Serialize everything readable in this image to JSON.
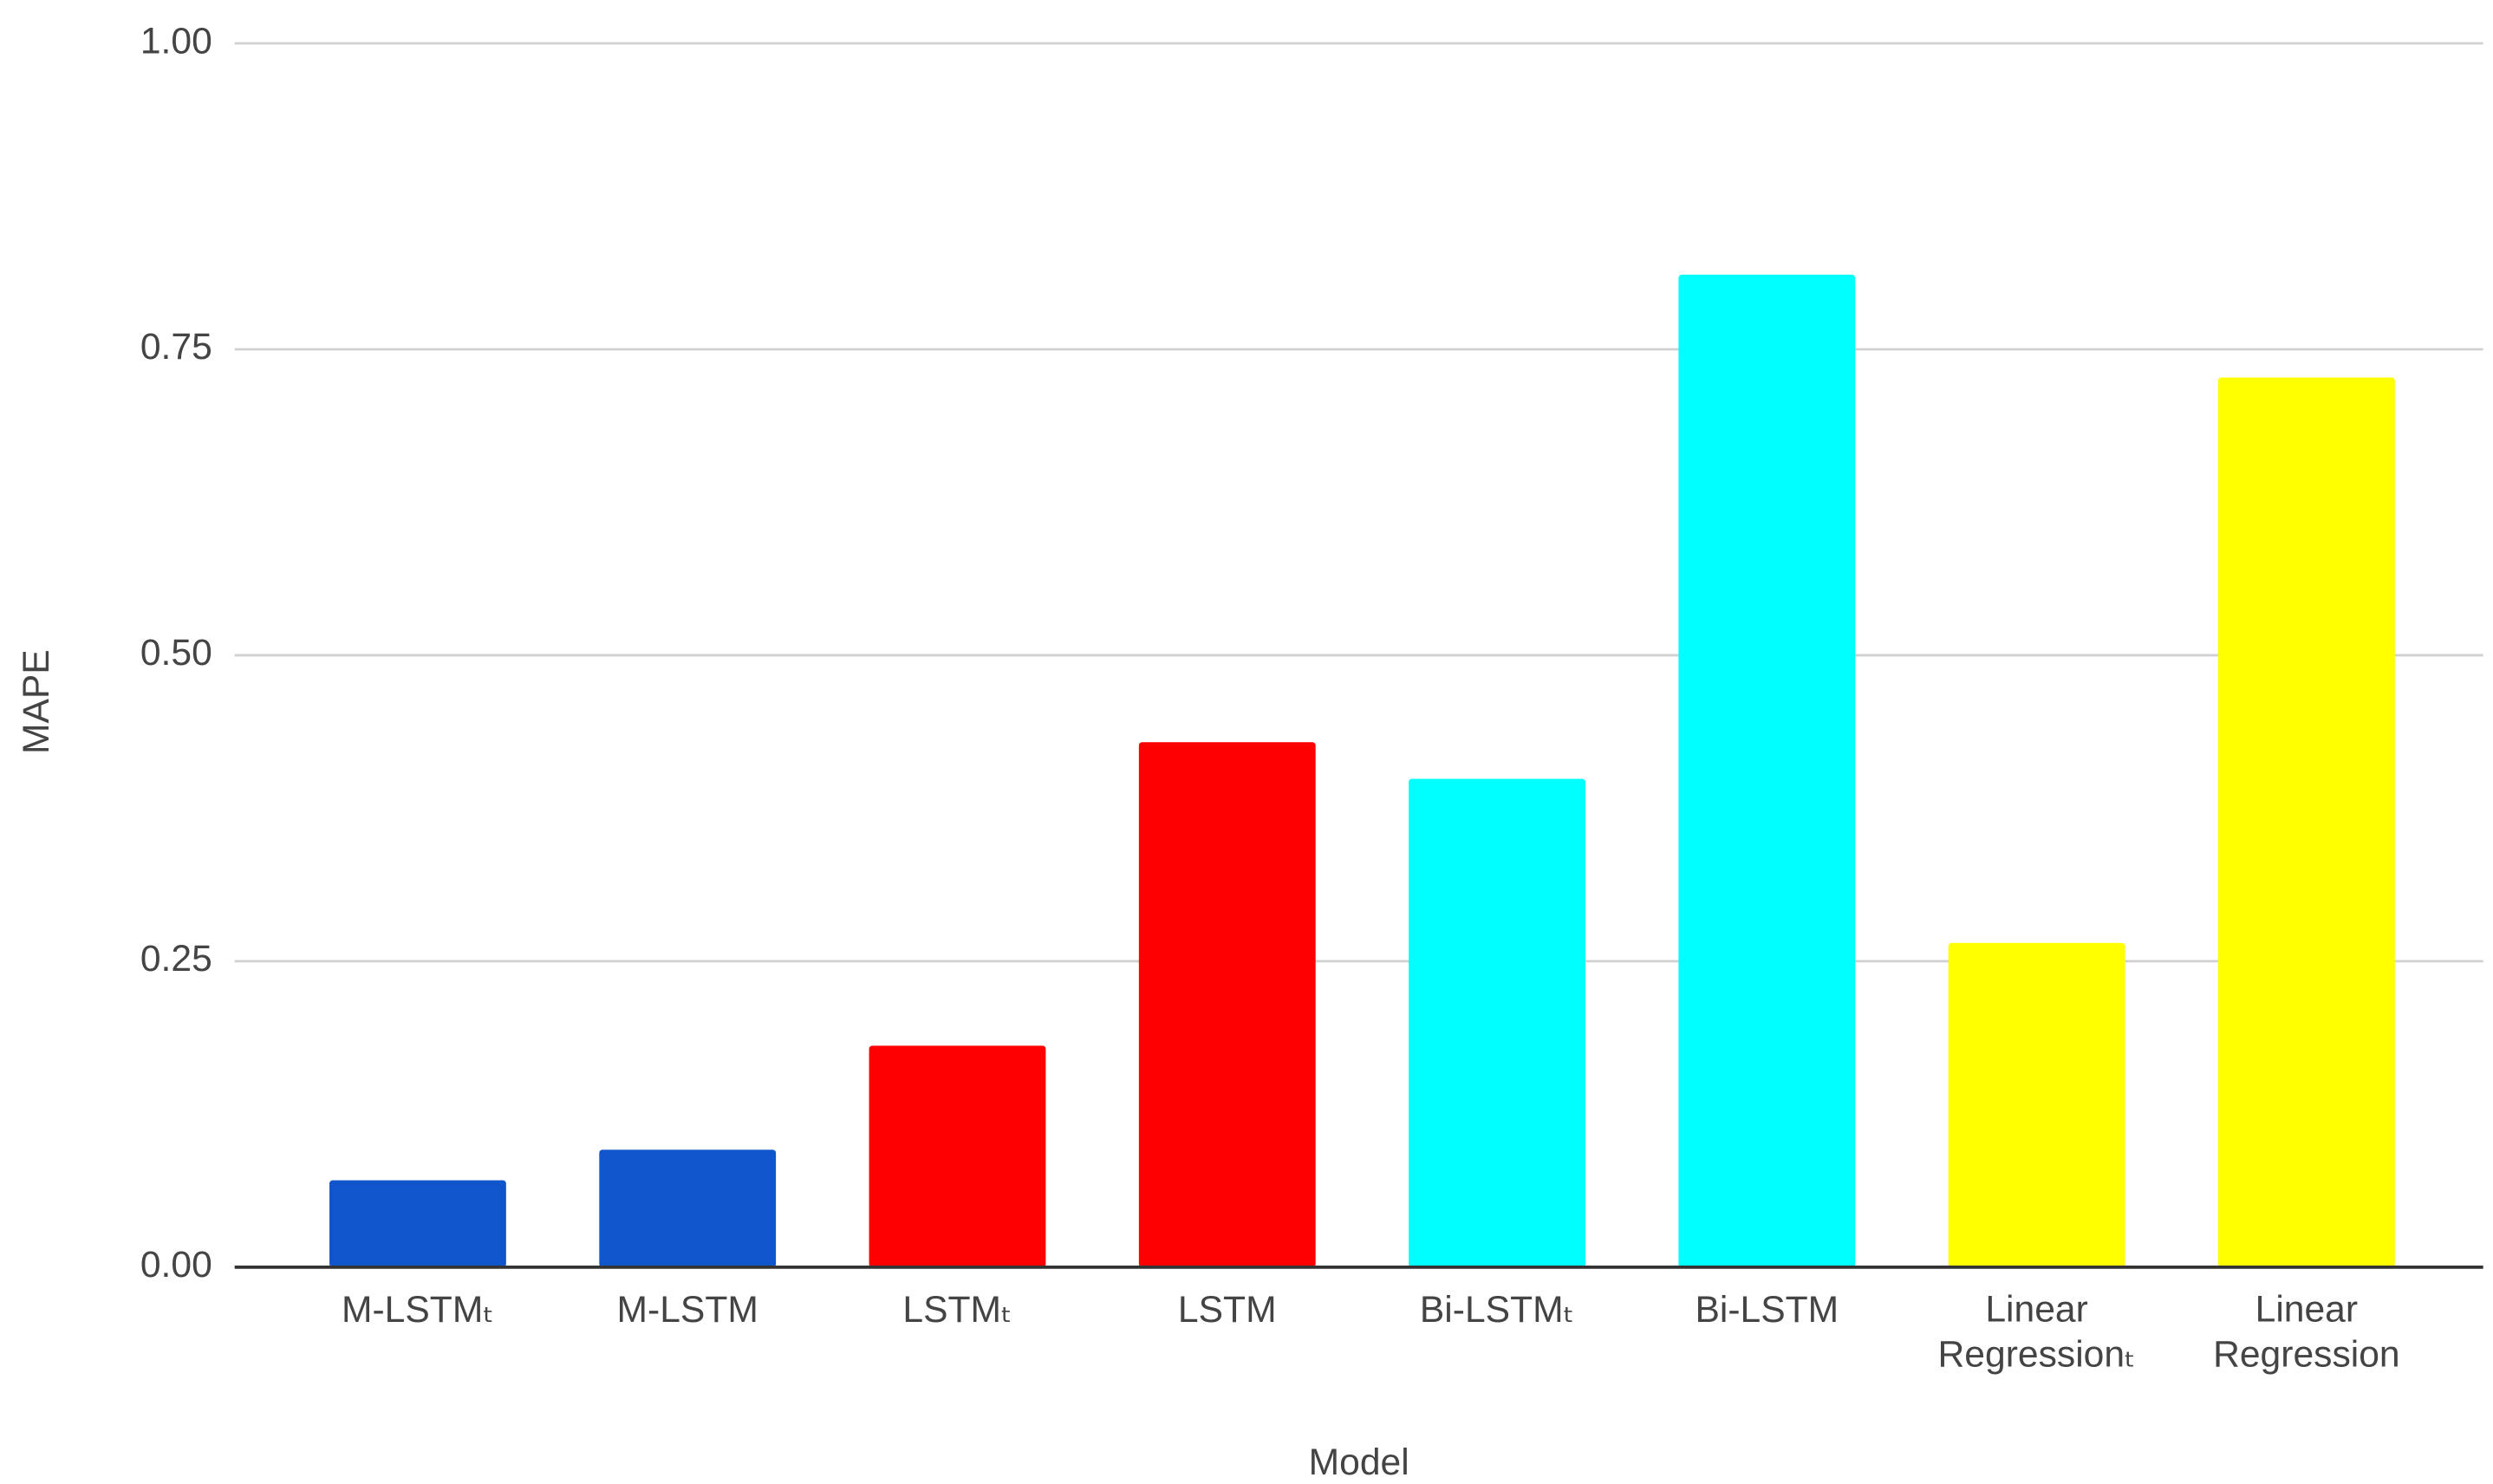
{
  "chart_data": {
    "type": "bar",
    "x_label": "Model",
    "y_label": "MAPE",
    "categories": [
      "M-LSTMₜ",
      "M-LSTM",
      "LSTMₜ",
      "LSTM",
      "Bi-LSTMₜ",
      "Bi-LSTM",
      "Linear Regressionₜ",
      "Linear Regression"
    ],
    "values": [
      0.071,
      0.096,
      0.181,
      0.429,
      0.399,
      0.811,
      0.265,
      0.727
    ],
    "colors": [
      "#1155cc",
      "#1155cc",
      "#ff0000",
      "#ff0000",
      "#00ffff",
      "#00ffff",
      "#ffff00",
      "#ffff00"
    ],
    "ylim": [
      0,
      1
    ],
    "yticks": [
      {
        "value": 0,
        "label": "0.00"
      },
      0.25,
      {
        "value": 0.5,
        "label": "0.50"
      },
      0.75,
      {
        "value": 1,
        "label": "1.00"
      }
    ],
    "grid": true
  }
}
